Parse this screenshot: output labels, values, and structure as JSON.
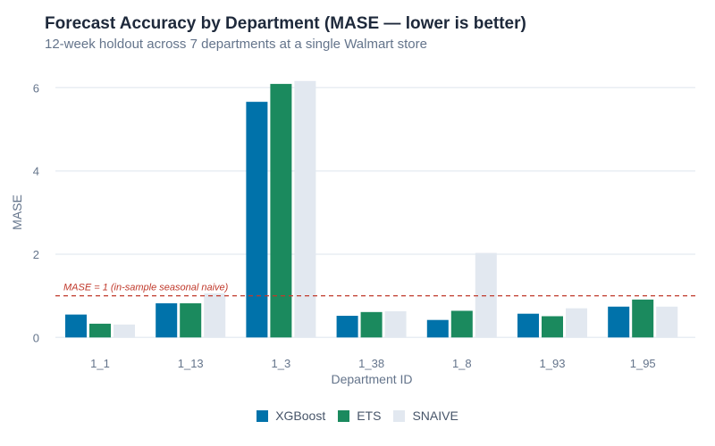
{
  "chart_data": {
    "type": "bar",
    "title": "Forecast Accuracy by Department (MASE — lower is better)",
    "subtitle": "12-week holdout across 7 departments at a single Walmart store",
    "xlabel": "Department ID",
    "ylabel": "MASE",
    "ylim": [
      0,
      6.4
    ],
    "yticks": [
      0,
      2,
      4,
      6
    ],
    "grid": true,
    "legend_placement": "bottom",
    "categories": [
      "1_1",
      "1_13",
      "1_3",
      "1_38",
      "1_8",
      "1_93",
      "1_95"
    ],
    "series": [
      {
        "name": "XGBoost",
        "color": "#0072aa",
        "values": [
          0.55,
          0.82,
          5.66,
          0.52,
          0.42,
          0.57,
          0.74
        ]
      },
      {
        "name": "ETS",
        "color": "#1b8a5e",
        "values": [
          0.33,
          0.82,
          6.09,
          0.61,
          0.64,
          0.51,
          0.91
        ]
      },
      {
        "name": "SNAIVE",
        "color": "#e2e8f0",
        "values": [
          0.31,
          1.06,
          6.16,
          0.63,
          2.03,
          0.7,
          0.74
        ]
      }
    ],
    "reference_line": {
      "value": 1,
      "label": "MASE = 1  (in-sample seasonal naive)",
      "color": "#c0392b"
    }
  }
}
